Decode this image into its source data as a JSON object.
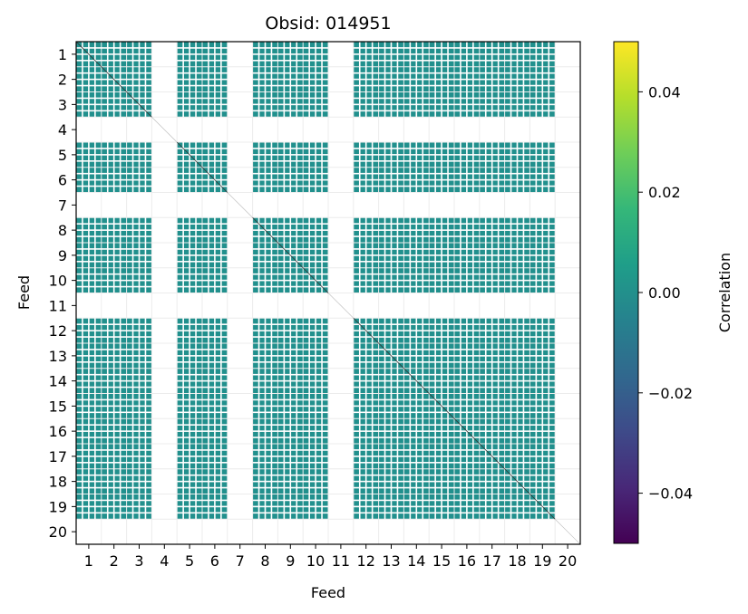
{
  "chart_data": {
    "type": "heatmap",
    "title": "Obsid: 014951",
    "xlabel": "Feed",
    "ylabel": "Feed",
    "x_tick_labels": [
      "1",
      "2",
      "3",
      "4",
      "5",
      "6",
      "7",
      "8",
      "9",
      "10",
      "11",
      "12",
      "13",
      "14",
      "15",
      "16",
      "17",
      "18",
      "19",
      "20"
    ],
    "y_tick_labels": [
      "1",
      "2",
      "3",
      "4",
      "5",
      "6",
      "7",
      "8",
      "9",
      "10",
      "11",
      "12",
      "13",
      "14",
      "15",
      "16",
      "17",
      "18",
      "19",
      "20"
    ],
    "cell_value": 0.0,
    "cell_color": "#21908d",
    "empty_feeds": [
      4,
      7,
      11,
      20
    ],
    "colorbar": {
      "label": "Correlation",
      "vmin": -0.05,
      "vmax": 0.05,
      "ticks": [
        -0.04,
        -0.02,
        0.0,
        0.02,
        0.04
      ],
      "tick_labels": [
        "−0.04",
        "−0.02",
        "0.00",
        "0.02",
        "0.04"
      ],
      "colors": [
        "#440154",
        "#482878",
        "#3e4a89",
        "#31688e",
        "#26828e",
        "#1f9e89",
        "#35b779",
        "#6ece58",
        "#b5de2b",
        "#fde725"
      ]
    }
  }
}
